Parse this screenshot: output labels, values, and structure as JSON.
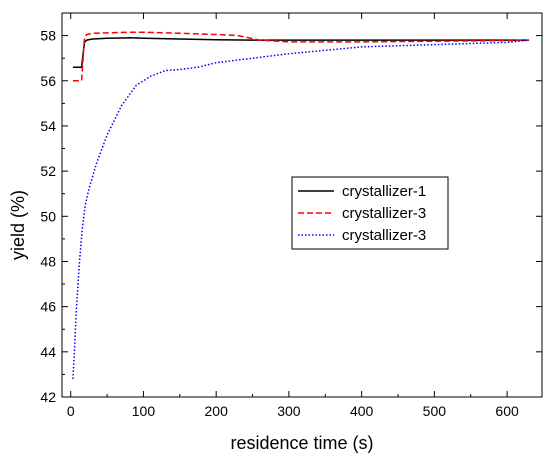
{
  "chart_data": {
    "type": "line",
    "title": "",
    "xlabel": "residence time (s)",
    "ylabel": "yield (%)",
    "xlim": [
      -12,
      648
    ],
    "ylim": [
      42,
      59
    ],
    "xticks": [
      0,
      100,
      200,
      300,
      400,
      500,
      600
    ],
    "xtick_labels": [
      "0",
      "100",
      "200",
      "300",
      "400",
      "500",
      "600"
    ],
    "yticks": [
      42,
      44,
      46,
      48,
      50,
      52,
      54,
      56,
      58
    ],
    "ytick_labels": [
      "42",
      "44",
      "46",
      "48",
      "50",
      "52",
      "54",
      "56",
      "58"
    ],
    "grid": false,
    "legend_position": "center-right",
    "series": [
      {
        "name": "crystallizer-1",
        "color": "#000000",
        "dash": "solid",
        "x": [
          3,
          10,
          15,
          17,
          19,
          22,
          30,
          50,
          80,
          100,
          150,
          200,
          250,
          300,
          400,
          500,
          600,
          630
        ],
        "y": [
          56.6,
          56.6,
          56.6,
          57.2,
          57.7,
          57.8,
          57.85,
          57.88,
          57.9,
          57.88,
          57.85,
          57.82,
          57.8,
          57.8,
          57.8,
          57.8,
          57.8,
          57.8
        ]
      },
      {
        "name": "crystallizer-3",
        "color": "#ff0000",
        "dash": "dashed",
        "x": [
          3,
          10,
          15,
          17,
          19,
          22,
          30,
          50,
          80,
          100,
          150,
          200,
          230,
          260,
          300,
          400,
          500,
          600,
          630
        ],
        "y": [
          56.0,
          56.0,
          56.0,
          57.0,
          57.9,
          58.05,
          58.1,
          58.12,
          58.15,
          58.15,
          58.1,
          58.05,
          58.0,
          57.8,
          57.72,
          57.72,
          57.75,
          57.78,
          57.8
        ]
      },
      {
        "name": "crystallizer-3",
        "color": "#0000ff",
        "dash": "dotted",
        "x": [
          3,
          5,
          8,
          12,
          16,
          20,
          25,
          35,
          50,
          70,
          90,
          110,
          130,
          150,
          175,
          200,
          250,
          300,
          400,
          500,
          600,
          630
        ],
        "y": [
          42.8,
          44.0,
          46.0,
          48.0,
          49.5,
          50.5,
          51.2,
          52.3,
          53.6,
          54.9,
          55.8,
          56.2,
          56.45,
          56.5,
          56.6,
          56.8,
          57.0,
          57.2,
          57.5,
          57.6,
          57.7,
          57.8
        ]
      }
    ]
  }
}
